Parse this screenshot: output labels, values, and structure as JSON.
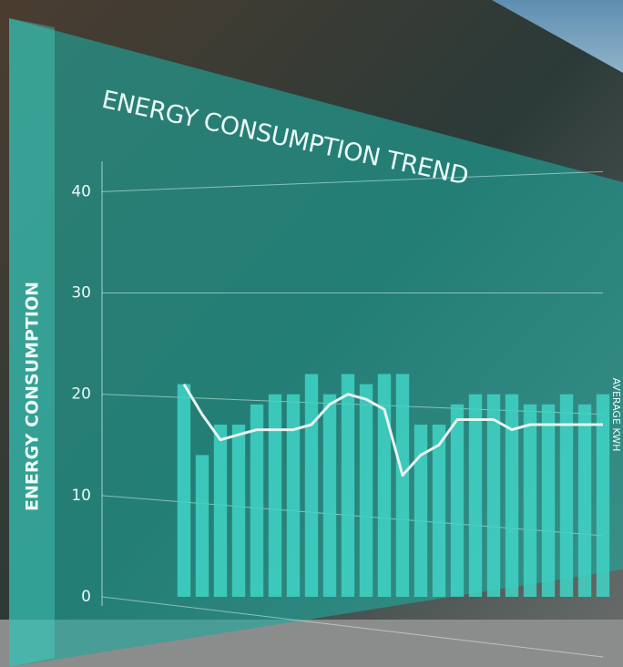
{
  "chart_data": {
    "type": "bar",
    "title": "ENERGY CONSUMPTION TREND",
    "y_label": "ENERGY CONSUMPTION",
    "y2_label": "AVERAGE KWH",
    "series": [
      {
        "name": "Energy consumption",
        "color": "#3fd3c6",
        "values": [
          21,
          14,
          17,
          17,
          19,
          20,
          20,
          22,
          20,
          22,
          21,
          22,
          22,
          17,
          17,
          19,
          20,
          20,
          20,
          19,
          19,
          20,
          19,
          20
        ]
      },
      {
        "name": "Average kWh",
        "color": "#e8f2ef",
        "line": true,
        "values": [
          21,
          18,
          15.5,
          16,
          16.5,
          16.5,
          16.5,
          17,
          19,
          20,
          19.5,
          18.5,
          12,
          14,
          15,
          17.5,
          17.5,
          17.5,
          16.5,
          17,
          17,
          17,
          17,
          17
        ]
      }
    ],
    "ylim": [
      0,
      43
    ],
    "yticks": [
      0,
      10,
      20,
      30,
      40
    ],
    "grid": true
  }
}
